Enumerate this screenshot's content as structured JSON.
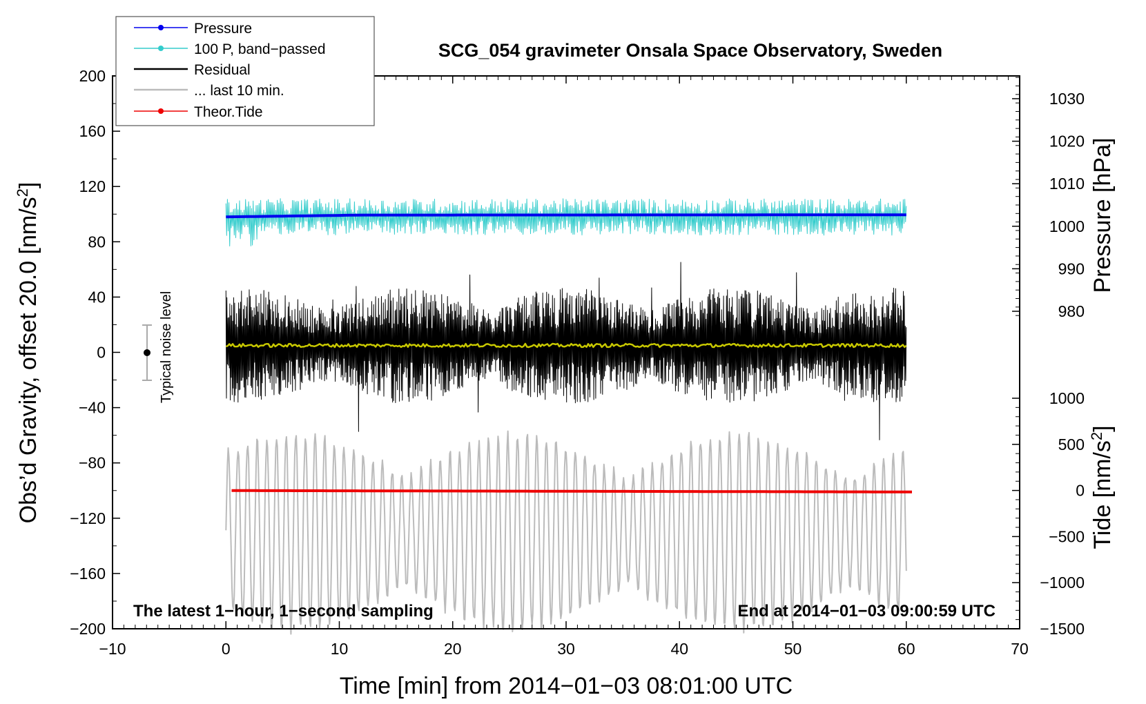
{
  "chart_data": {
    "type": "line",
    "title": "SCG_054 gravimeter Onsala Space Observatory, Sweden",
    "xlabel": "Time [min] from 2014−01−03 08:01:00 UTC",
    "ylabel_left_main": "Obs’d Gravity, offset 20.0 [nm/s",
    "ylabel_left_sup": "2",
    "ylabel_left_close": "]",
    "ylabel_right_top": "Pressure [hPa]",
    "ylabel_right_bottom_main": "Tide [nm/s",
    "ylabel_right_bottom_sup": "2",
    "ylabel_right_bottom_close": "]",
    "xlim": [
      -10,
      70
    ],
    "ylim_left": [
      -200,
      200
    ],
    "x_ticks": [
      "−10",
      "0",
      "10",
      "20",
      "30",
      "40",
      "50",
      "60",
      "70"
    ],
    "y_ticks_left": [
      "200",
      "160",
      "120",
      "80",
      "40",
      "0",
      "−40",
      "−80",
      "−120",
      "−160",
      "−200"
    ],
    "pressure_ticks": [
      "1030",
      "1020",
      "1010",
      "1000",
      "990",
      "980"
    ],
    "tide_ticks": [
      "1000",
      "500",
      "0",
      "−500",
      "−1000",
      "−1500"
    ],
    "annotation_left": "The latest 1−hour, 1−second sampling",
    "annotation_right": "End at 2014−01−03 09:00:59 UTC",
    "noise_label": "Typical noise level",
    "noise_bar": {
      "center": 0,
      "half_range": 20,
      "x": -7
    },
    "legend": [
      {
        "label": "Pressure",
        "color": "#0000ee",
        "marker": true
      },
      {
        "label": "100 P, band−passed",
        "color": "#33cccc",
        "marker": true
      },
      {
        "label": "Residual",
        "color": "#000000",
        "marker": false
      },
      {
        "label": "... last 10 min.",
        "color": "#bbbbbb",
        "marker": false
      },
      {
        "label": "Theor.Tide",
        "color": "#ee0000",
        "marker": true
      }
    ],
    "series": [
      {
        "name": "Pressure",
        "color": "#0000ee",
        "axis": "left",
        "x_range": [
          0,
          60
        ],
        "level_start": 98,
        "level_end": 99.5
      },
      {
        "name": "100 P, band−passed",
        "color": "#33cccc",
        "axis": "left",
        "x_range": [
          0,
          60
        ],
        "center": 98,
        "amplitude": 12
      },
      {
        "name": "Residual",
        "color": "#000000",
        "axis": "left",
        "x_range": [
          0,
          60
        ],
        "center": 5,
        "amplitude": 35
      },
      {
        "name": "Residual mean",
        "color": "#c8c800",
        "axis": "left",
        "x_range": [
          0,
          60
        ],
        "level": 5
      },
      {
        "name": "... last 10 min.",
        "color": "#bbbbbb",
        "axis": "left",
        "x_range": [
          0,
          60
        ],
        "center": -130,
        "amplitude": 70
      },
      {
        "name": "Theor.Tide",
        "color": "#ee0000",
        "axis": "left",
        "x_range": [
          0.5,
          60.5
        ],
        "level_start": -100,
        "level_end": -101
      }
    ]
  }
}
